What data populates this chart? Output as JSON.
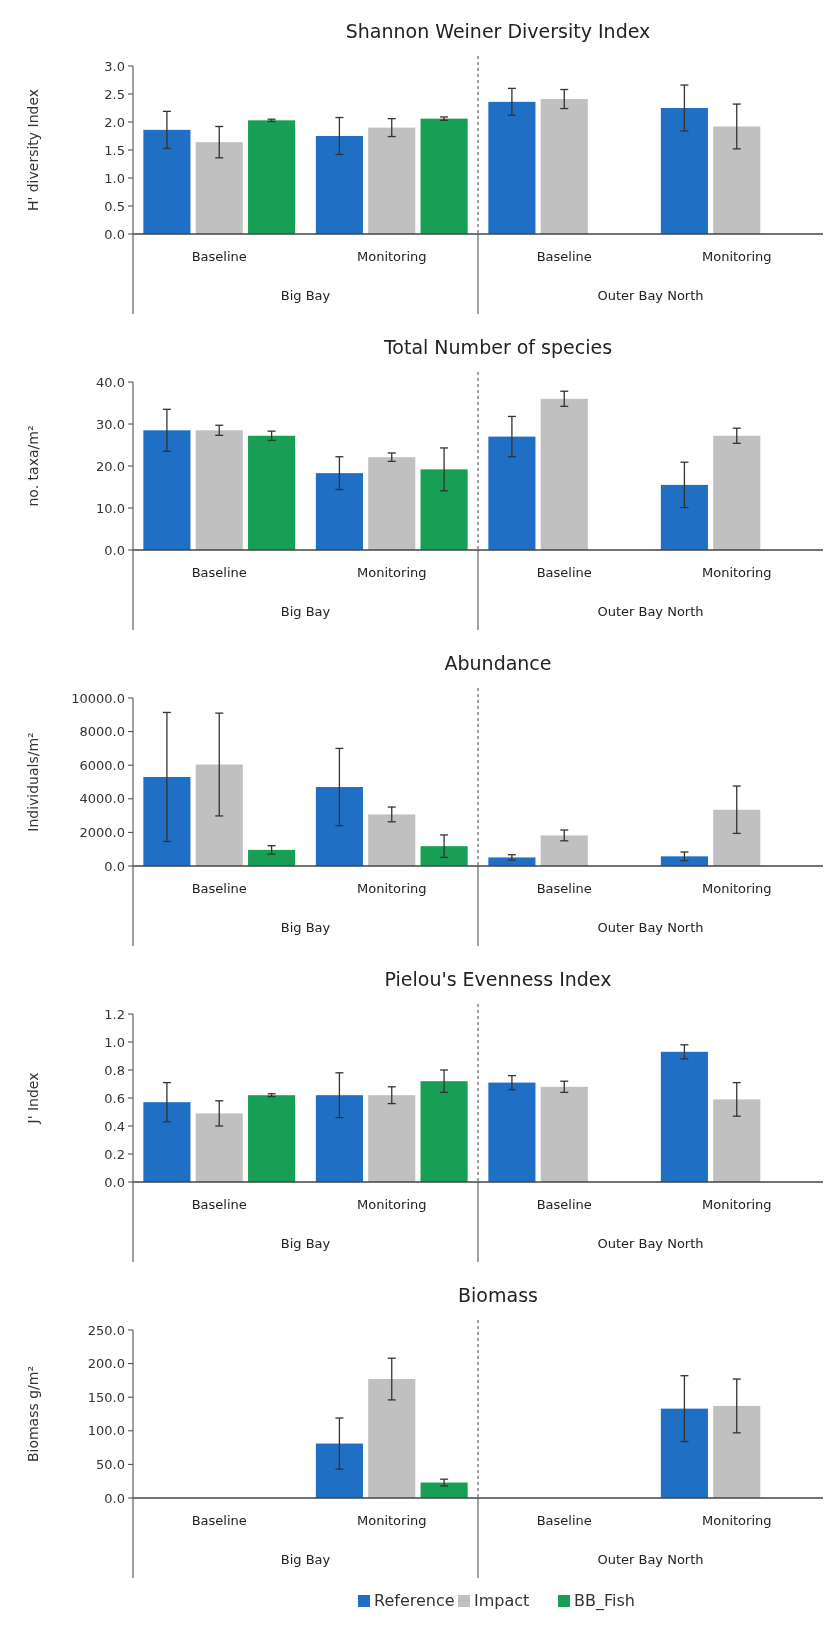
{
  "chart_data": [
    {
      "type": "bar",
      "title": "Shannon Weiner Diversity Index",
      "ylabel": "H' diversity Index",
      "categories": [
        "Baseline",
        "Monitoring",
        "Baseline",
        "Monitoring"
      ],
      "annotations": [
        "Big Bay",
        "Outer Bay North"
      ],
      "ylim": [
        0,
        3
      ],
      "yticks": [
        {
          "value": 0,
          "label": "0.0"
        },
        {
          "value": 0.5,
          "label": "0.5"
        },
        {
          "value": 1,
          "label": "1.0"
        },
        {
          "value": 1.5,
          "label": "1.5"
        },
        {
          "value": 2,
          "label": "2.0"
        },
        {
          "value": 2.5,
          "label": "2.5"
        },
        {
          "value": 3,
          "label": "3.0"
        }
      ],
      "legend": false,
      "series": [
        {
          "color": "#1f6fc5",
          "values": [
            1.86,
            1.75,
            2.36,
            2.25
          ],
          "errors": [
            0.33,
            0.33,
            0.24,
            0.41
          ]
        },
        {
          "color": "#c0c0c0",
          "values": [
            1.64,
            1.9,
            2.41,
            1.92
          ],
          "errors": [
            0.28,
            0.16,
            0.17,
            0.4
          ]
        },
        {
          "color": "#17a055",
          "values": [
            2.03,
            2.06,
            null,
            null
          ],
          "errors": [
            0.02,
            0.03,
            null,
            null
          ]
        }
      ]
    },
    {
      "type": "bar",
      "title": "Total Number of species",
      "ylabel": "no. taxa/m²",
      "categories": [
        "Baseline",
        "Monitoring",
        "Baseline",
        "Monitoring"
      ],
      "annotations": [
        "Big Bay",
        "Outer Bay North"
      ],
      "ylim": [
        0,
        40
      ],
      "yticks": [
        {
          "value": 0,
          "label": "0.0"
        },
        {
          "value": 10,
          "label": "10.0"
        },
        {
          "value": 20,
          "label": "20.0"
        },
        {
          "value": 30,
          "label": "30.0"
        },
        {
          "value": 40,
          "label": "40.0"
        }
      ],
      "legend": false,
      "series": [
        {
          "color": "#1f6fc5",
          "values": [
            28.5,
            18.3,
            27.0,
            15.5
          ],
          "errors": [
            5.0,
            3.9,
            4.8,
            5.4
          ]
        },
        {
          "color": "#c0c0c0",
          "values": [
            28.5,
            22.1,
            36.0,
            27.2
          ],
          "errors": [
            1.2,
            1.0,
            1.8,
            1.8
          ]
        },
        {
          "color": "#17a055",
          "values": [
            27.2,
            19.2,
            null,
            null
          ],
          "errors": [
            1.1,
            5.1,
            null,
            null
          ]
        }
      ]
    },
    {
      "type": "bar",
      "title": "Abundance",
      "ylabel": "Individuals/m²",
      "categories": [
        "Baseline",
        "Monitoring",
        "Baseline",
        "Monitoring"
      ],
      "annotations": [
        "Big Bay",
        "Outer Bay North"
      ],
      "ylim": [
        0,
        10000
      ],
      "yticks": [
        {
          "value": 0,
          "label": "0.0"
        },
        {
          "value": 2000,
          "label": "2000.0"
        },
        {
          "value": 4000,
          "label": "4000.0"
        },
        {
          "value": 6000,
          "label": "6000.0"
        },
        {
          "value": 8000,
          "label": "8000.0"
        },
        {
          "value": 10000,
          "label": "10000.0"
        }
      ],
      "legend": false,
      "series": [
        {
          "color": "#1f6fc5",
          "values": [
            5300,
            4700,
            510,
            575
          ],
          "errors": [
            3840,
            2300,
            160,
            255
          ]
        },
        {
          "color": "#c0c0c0",
          "values": [
            6040,
            3070,
            1820,
            3350
          ],
          "errors": [
            3060,
            440,
            320,
            1410
          ]
        },
        {
          "color": "#17a055",
          "values": [
            960,
            1180,
            null,
            null
          ],
          "errors": [
            250,
            670,
            null,
            null
          ]
        }
      ]
    },
    {
      "type": "bar",
      "title": "Pielou's Evenness Index",
      "ylabel": "J' Index",
      "categories": [
        "Baseline",
        "Monitoring",
        "Baseline",
        "Monitoring"
      ],
      "annotations": [
        "Big Bay",
        "Outer Bay North"
      ],
      "ylim": [
        0,
        1.2
      ],
      "yticks": [
        {
          "value": 0,
          "label": "0.0"
        },
        {
          "value": 0.2,
          "label": "0.2"
        },
        {
          "value": 0.4,
          "label": "0.4"
        },
        {
          "value": 0.6,
          "label": "0.6"
        },
        {
          "value": 0.8,
          "label": "0.8"
        },
        {
          "value": 1,
          "label": "1.0"
        },
        {
          "value": 1.2,
          "label": "1.2"
        }
      ],
      "legend": false,
      "series": [
        {
          "color": "#1f6fc5",
          "values": [
            0.57,
            0.62,
            0.71,
            0.93
          ],
          "errors": [
            0.14,
            0.16,
            0.05,
            0.05
          ]
        },
        {
          "color": "#c0c0c0",
          "values": [
            0.49,
            0.62,
            0.68,
            0.59
          ],
          "errors": [
            0.09,
            0.06,
            0.04,
            0.12
          ]
        },
        {
          "color": "#17a055",
          "values": [
            0.62,
            0.72,
            null,
            null
          ],
          "errors": [
            0.01,
            0.08,
            null,
            null
          ]
        }
      ]
    },
    {
      "type": "bar",
      "title": "Biomass",
      "ylabel": "Biomass g/m²",
      "categories": [
        "Baseline",
        "Monitoring",
        "Baseline",
        "Monitoring"
      ],
      "annotations": [
        "Big Bay",
        "Outer Bay North"
      ],
      "ylim": [
        0,
        250
      ],
      "yticks": [
        {
          "value": 0,
          "label": "0.0"
        },
        {
          "value": 50,
          "label": "50.0"
        },
        {
          "value": 100,
          "label": "100.0"
        },
        {
          "value": 150,
          "label": "150.0"
        },
        {
          "value": 200,
          "label": "200.0"
        },
        {
          "value": 250,
          "label": "250.0"
        }
      ],
      "legend": "bottom",
      "series": [
        {
          "name": "Reference",
          "color": "#1f6fc5",
          "values": [
            null,
            81,
            null,
            133
          ],
          "errors": [
            null,
            38,
            null,
            49
          ]
        },
        {
          "name": "Impact",
          "color": "#c0c0c0",
          "values": [
            null,
            177,
            null,
            137
          ],
          "errors": [
            null,
            31,
            null,
            40
          ]
        },
        {
          "name": "BB_Fish",
          "color": "#17a055",
          "values": [
            null,
            23,
            null,
            null
          ],
          "errors": [
            null,
            5,
            null,
            null
          ]
        }
      ]
    }
  ]
}
